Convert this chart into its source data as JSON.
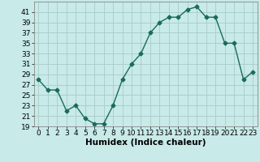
{
  "x": [
    0,
    1,
    2,
    3,
    4,
    5,
    6,
    7,
    8,
    9,
    10,
    11,
    12,
    13,
    14,
    15,
    16,
    17,
    18,
    19,
    20,
    21,
    22,
    23
  ],
  "y": [
    28,
    26,
    26,
    22,
    23,
    20.5,
    19.5,
    19.5,
    23,
    28,
    31,
    33,
    37,
    39,
    40,
    40,
    41.5,
    42,
    40,
    40,
    35,
    35,
    28,
    29.5
  ],
  "line_color": "#1a6b5a",
  "marker_color": "#1a6b5a",
  "bg_color": "#c8eae8",
  "grid_color": "#a8ccc8",
  "xlabel": "Humidex (Indice chaleur)",
  "ylim": [
    19,
    43
  ],
  "xlim": [
    -0.5,
    23.5
  ],
  "yticks": [
    19,
    21,
    23,
    25,
    27,
    29,
    31,
    33,
    35,
    37,
    39,
    41
  ],
  "xticks": [
    0,
    1,
    2,
    3,
    4,
    5,
    6,
    7,
    8,
    9,
    10,
    11,
    12,
    13,
    14,
    15,
    16,
    17,
    18,
    19,
    20,
    21,
    22,
    23
  ],
  "marker": "D",
  "marker_size": 2.5,
  "line_width": 1.0,
  "xlabel_fontsize": 7.5,
  "tick_fontsize": 6.5
}
